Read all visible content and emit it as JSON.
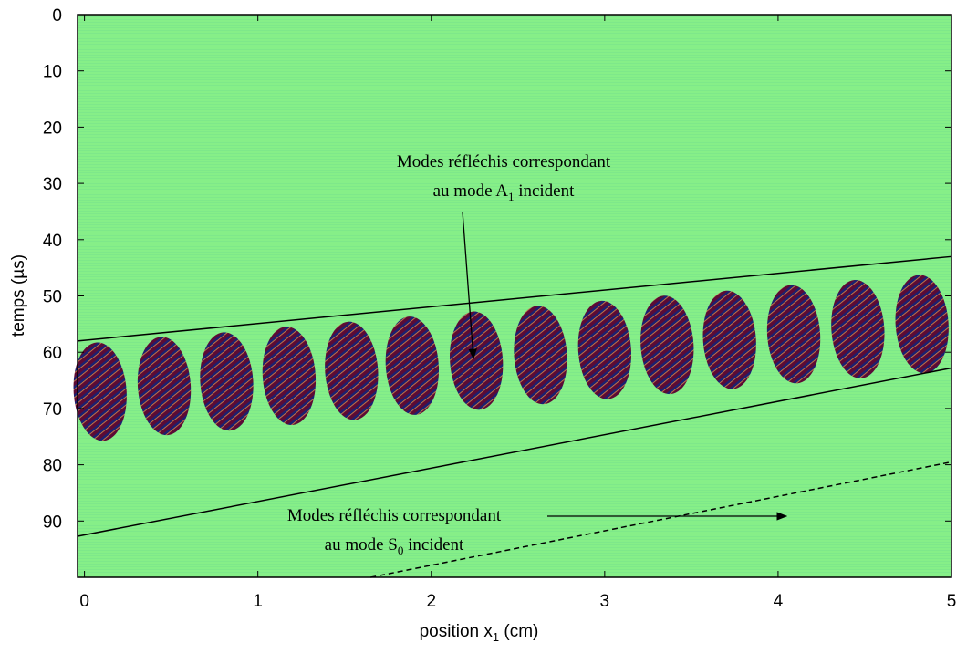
{
  "chart_data": {
    "type": "image-plot",
    "x_label": [
      "position x",
      "1",
      " (cm)"
    ],
    "y_label": "temps (µs)",
    "xlim": [
      -0.04,
      5
    ],
    "ylim": [
      100,
      0
    ],
    "xticks": [
      0,
      1,
      2,
      3,
      4,
      5
    ],
    "yticks": [
      0,
      10,
      20,
      30,
      40,
      50,
      60,
      70,
      80,
      90
    ],
    "background_color": "#86ef88",
    "wave_packets": {
      "x": [
        0.09,
        0.46,
        0.82,
        1.18,
        1.54,
        1.89,
        2.26,
        2.63,
        3.0,
        3.36,
        3.72,
        4.09,
        4.46,
        4.83
      ],
      "values": [
        67,
        66,
        65.2,
        64.2,
        63.3,
        62.4,
        61.5,
        60.5,
        59.6,
        58.7,
        57.8,
        56.8,
        55.9,
        55
      ]
    },
    "lines": [
      {
        "x": [
          -0.04,
          5
        ],
        "values": [
          58,
          43
        ],
        "color": "#000000",
        "dashed": false
      },
      {
        "x": [
          -0.04,
          5
        ],
        "values": [
          92.7,
          62.8
        ],
        "color": "#000000",
        "dashed": false
      },
      {
        "x": [
          1.65,
          5
        ],
        "values": [
          100,
          79.5
        ],
        "color": "#000000",
        "dashed": true
      }
    ],
    "annotations": [
      {
        "lines": [
          [
            "Modes réfléchis correspondant"
          ],
          [
            "au mode A",
            "1",
            " incident"
          ]
        ]
      },
      {
        "lines": [
          [
            "Modes réfléchis correspondant"
          ],
          [
            "au mode S",
            "0",
            " incident"
          ]
        ]
      }
    ]
  }
}
